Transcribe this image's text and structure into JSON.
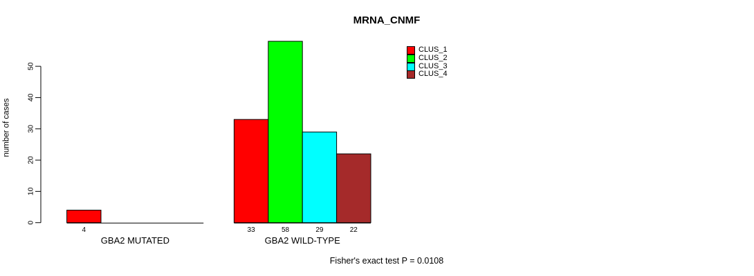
{
  "page": {
    "background": "#ffffff"
  },
  "chart_data": {
    "type": "bar",
    "title": "MRNA_CNMF",
    "xlabel": "",
    "ylabel": "number of cases",
    "ylim": [
      0,
      58
    ],
    "yticks": [
      0,
      10,
      20,
      30,
      40,
      50
    ],
    "grid": false,
    "legend_position": "top-right",
    "categories": [
      "GBA2 MUTATED",
      "GBA2 WILD-TYPE"
    ],
    "series": [
      {
        "name": "CLUS_1",
        "color": "#FF0000",
        "values": [
          4,
          33
        ]
      },
      {
        "name": "CLUS_2",
        "color": "#00FF00",
        "values": [
          0,
          58
        ]
      },
      {
        "name": "CLUS_3",
        "color": "#00FFFF",
        "values": [
          0,
          29
        ]
      },
      {
        "name": "CLUS_4",
        "color": "#A52A2A",
        "values": [
          0,
          22
        ]
      }
    ],
    "bar_value_labels": {
      "GBA2 MUTATED": [
        "4"
      ],
      "GBA2 WILD-TYPE": [
        "33",
        "58",
        "29",
        "22"
      ]
    },
    "annotation": "Fisher's exact test P = 0.0108"
  },
  "legend": {
    "items": [
      {
        "label": "CLUS_1",
        "color": "#FF0000"
      },
      {
        "label": "CLUS_2",
        "color": "#00FF00"
      },
      {
        "label": "CLUS_3",
        "color": "#00FFFF"
      },
      {
        "label": "CLUS_4",
        "color": "#A52A2A"
      }
    ]
  }
}
